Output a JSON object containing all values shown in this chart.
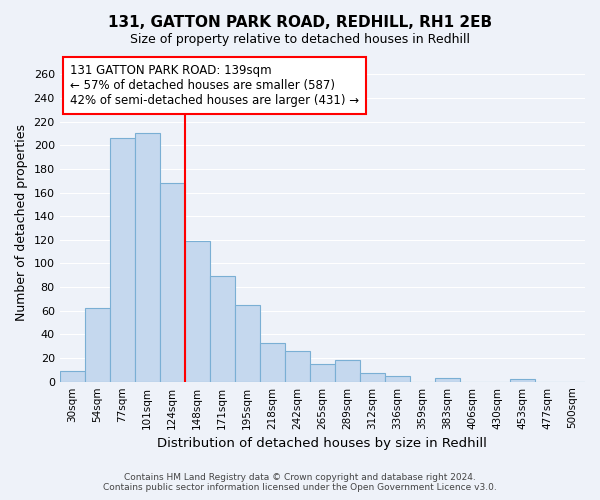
{
  "title": "131, GATTON PARK ROAD, REDHILL, RH1 2EB",
  "subtitle": "Size of property relative to detached houses in Redhill",
  "xlabel": "Distribution of detached houses by size in Redhill",
  "ylabel": "Number of detached properties",
  "bar_color": "#c5d8ee",
  "bar_edge_color": "#7aafd4",
  "background_color": "#eef2f9",
  "grid_color": "#ffffff",
  "bin_labels": [
    "30sqm",
    "54sqm",
    "77sqm",
    "101sqm",
    "124sqm",
    "148sqm",
    "171sqm",
    "195sqm",
    "218sqm",
    "242sqm",
    "265sqm",
    "289sqm",
    "312sqm",
    "336sqm",
    "359sqm",
    "383sqm",
    "406sqm",
    "430sqm",
    "453sqm",
    "477sqm",
    "500sqm"
  ],
  "bar_values": [
    9,
    62,
    206,
    210,
    168,
    119,
    89,
    65,
    33,
    26,
    15,
    18,
    7,
    5,
    0,
    3,
    0,
    0,
    2,
    0,
    0
  ],
  "property_line_x": 5,
  "property_line_label": "131 GATTON PARK ROAD: 139sqm",
  "annotation_line1": "← 57% of detached houses are smaller (587)",
  "annotation_line2": "42% of semi-detached houses are larger (431) →",
  "ylim": [
    0,
    270
  ],
  "yticks": [
    0,
    20,
    40,
    60,
    80,
    100,
    120,
    140,
    160,
    180,
    200,
    220,
    240,
    260
  ],
  "footer_line1": "Contains HM Land Registry data © Crown copyright and database right 2024.",
  "footer_line2": "Contains public sector information licensed under the Open Government Licence v3.0."
}
